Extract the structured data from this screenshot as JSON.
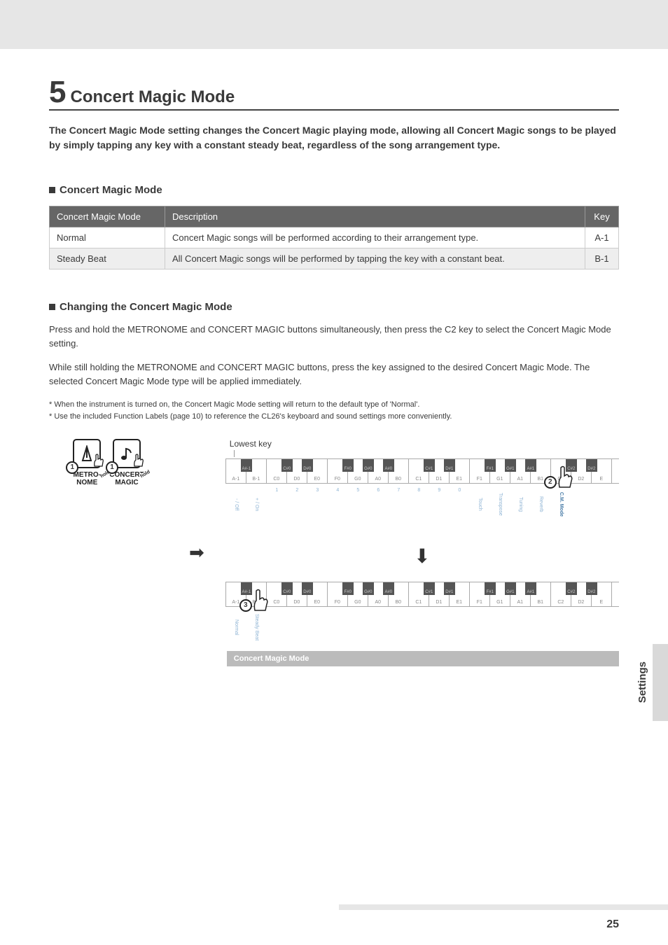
{
  "section": {
    "number": "5",
    "title": "Concert Magic Mode"
  },
  "intro": "The Concert Magic Mode setting changes the Concert Magic playing mode, allowing all Concert Magic songs to be played by simply tapping any key with a constant steady beat, regardless of the song arrangement type.",
  "sub1": "Concert Magic Mode",
  "table": {
    "headers": [
      "Concert Magic Mode",
      "Description",
      "Key"
    ],
    "rows": [
      [
        "Normal",
        "Concert Magic songs will be performed according to their arrangement type.",
        "A-1"
      ],
      [
        "Steady Beat",
        "All Concert Magic songs will be performed by tapping the key with a constant beat.",
        "B-1"
      ]
    ]
  },
  "sub2": "Changing the Concert Magic Mode",
  "para1": "Press and hold the METRONOME and CONCERT MAGIC buttons simultaneously, then press the C2 key to select the Concert Magic Mode setting.",
  "para2": "While still holding the METRONOME and CONCERT MAGIC buttons, press the key assigned to the desired Concert Magic Mode. The selected Concert Magic Mode type will be applied immediately.",
  "foot1": "* When the instrument is turned on, the Concert Magic Mode setting will return to the default type of 'Normal'.",
  "foot2": "* Use the included Function Labels (page 10) to reference the CL26's keyboard and sound settings more conveniently.",
  "lowestKey": "Lowest key",
  "buttons": {
    "metro": "METRO-\nNOME",
    "concert": "CONCERT\nMAGIC",
    "hold": "hold",
    "step1": "1",
    "step2": "2",
    "step3": "3"
  },
  "whiteKeys": [
    "A-1",
    "B-1",
    "C0",
    "D0",
    "E0",
    "F0",
    "G0",
    "A0",
    "B0",
    "C1",
    "D1",
    "E1",
    "F1",
    "G1",
    "A1",
    "B1",
    "C2",
    "D2",
    "E"
  ],
  "blackKeys": [
    {
      "label": "A#-1",
      "after": 0
    },
    {
      "label": "C#0",
      "after": 2
    },
    {
      "label": "D#0",
      "after": 3
    },
    {
      "label": "F#0",
      "after": 5
    },
    {
      "label": "G#0",
      "after": 6
    },
    {
      "label": "A#0",
      "after": 7
    },
    {
      "label": "C#1",
      "after": 9
    },
    {
      "label": "D#1",
      "after": 10
    },
    {
      "label": "F#1",
      "after": 12
    },
    {
      "label": "G#1",
      "after": 13
    },
    {
      "label": "A#1",
      "after": 14
    },
    {
      "label": "C#2",
      "after": 16
    },
    {
      "label": "D#2",
      "after": 17
    }
  ],
  "strip1": [
    "- / Off",
    "+ / On",
    "1",
    "2",
    "3",
    "4",
    "5",
    "6",
    "7",
    "8",
    "9",
    "0",
    "Touch",
    "Transpose",
    "Tuning",
    "Reverb",
    "C.M. Mode",
    "",
    ""
  ],
  "strip1_bold_idx": 16,
  "strip2": [
    "Normal",
    "Steady Beat",
    "",
    "",
    "",
    "",
    "",
    "",
    "",
    "",
    "",
    "",
    "",
    "",
    "",
    "",
    "",
    "",
    ""
  ],
  "cmTag": "Concert Magic Mode",
  "side": "Settings",
  "pageNum": "25",
  "colors": {
    "banner": "#e6e6e6",
    "headerBg": "#666666",
    "rowAlt": "#eeeeee",
    "labelBlue": "#8fb4d4",
    "boldBlue": "#4a7da8",
    "tagGrey": "#bbbbbb"
  }
}
